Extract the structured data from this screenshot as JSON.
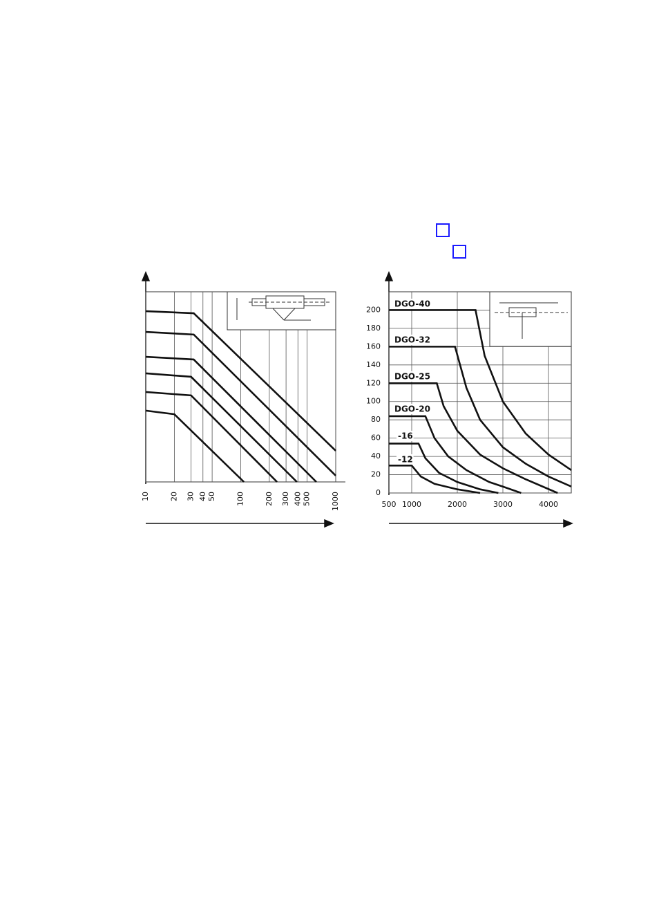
{
  "chart_data": [
    {
      "type": "line",
      "xscale": "log",
      "xlim": [
        10,
        1000
      ],
      "ylim": [
        0,
        100
      ],
      "xticks": [
        10,
        20,
        30,
        40,
        50,
        100,
        200,
        300,
        400,
        500,
        1000
      ],
      "grid": true,
      "color": "#111111",
      "series": [
        {
          "x": [
            10,
            32,
            1000
          ],
          "values": [
            89.8,
            88.7,
            16.4
          ]
        },
        {
          "x": [
            10,
            32,
            1000
          ],
          "values": [
            78.9,
            77.5,
            3.3
          ]
        },
        {
          "x": [
            10,
            32,
            625
          ],
          "values": [
            65.8,
            64.4,
            0
          ]
        },
        {
          "x": [
            10,
            30,
            390
          ],
          "values": [
            57.1,
            55.3,
            0
          ]
        },
        {
          "x": [
            10,
            30,
            241
          ],
          "values": [
            47.3,
            45.5,
            0
          ]
        },
        {
          "x": [
            10,
            20,
            108
          ],
          "values": [
            37.5,
            35.6,
            0
          ]
        }
      ]
    },
    {
      "type": "line",
      "xscale": "linear",
      "xlim": [
        500,
        4500
      ],
      "ylim": [
        0,
        220
      ],
      "xticks": [
        500,
        1000,
        2000,
        3000,
        4000
      ],
      "yticks": [
        0,
        20,
        40,
        60,
        80,
        100,
        120,
        140,
        160,
        180,
        200
      ],
      "grid": true,
      "color": "#111111",
      "series": [
        {
          "name": "DGO-40",
          "x": [
            500,
            2400,
            2600,
            3000,
            3500,
            4000,
            4500
          ],
          "values": [
            200,
            200,
            150,
            100,
            65,
            42,
            25
          ]
        },
        {
          "name": "DGO-32",
          "x": [
            500,
            1950,
            2200,
            2500,
            3000,
            3500,
            4000,
            4500
          ],
          "values": [
            160,
            160,
            115,
            80,
            50,
            32,
            18,
            7
          ]
        },
        {
          "name": "DGO-25",
          "x": [
            500,
            1550,
            1700,
            2000,
            2500,
            3000,
            3500,
            4200
          ],
          "values": [
            120,
            120,
            95,
            68,
            42,
            27,
            15,
            0
          ]
        },
        {
          "name": "DGO-20",
          "x": [
            500,
            1300,
            1500,
            1800,
            2200,
            2700,
            3000,
            3400
          ],
          "values": [
            84,
            84,
            60,
            40,
            25,
            12,
            7,
            0
          ]
        },
        {
          "name": "-16",
          "x": [
            500,
            1150,
            1300,
            1600,
            2000,
            2500,
            2900
          ],
          "values": [
            54,
            54,
            38,
            22,
            12,
            4,
            0
          ]
        },
        {
          "name": "-12",
          "x": [
            500,
            1000,
            1200,
            1500,
            2000,
            2500
          ],
          "values": [
            30,
            30,
            18,
            10,
            4,
            0
          ]
        }
      ]
    }
  ]
}
